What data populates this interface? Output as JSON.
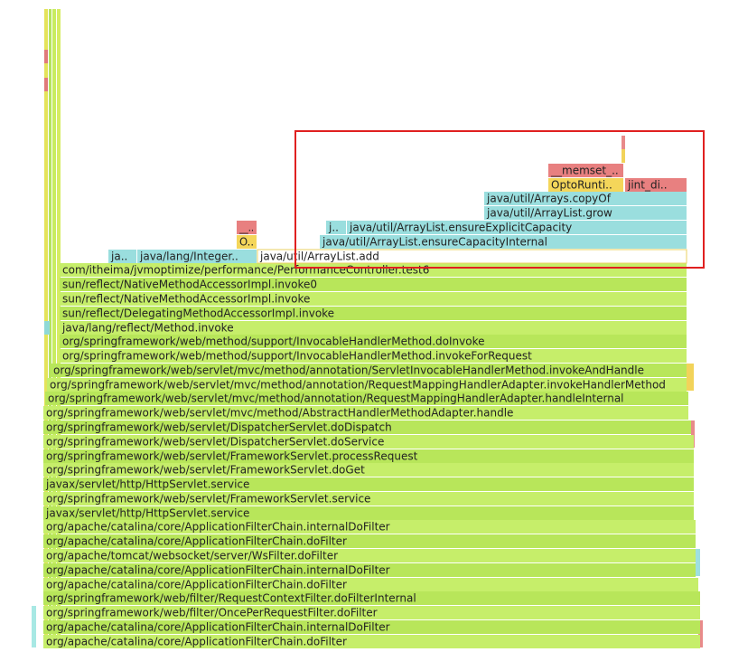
{
  "frames": [
    {
      "label": "org/apache/catalina/core/ApplicationFilterChain.doFilter"
    },
    {
      "label": "org/apache/catalina/core/ApplicationFilterChain.internalDoFilter"
    },
    {
      "label": "org/springframework/web/filter/OncePerRequestFilter.doFilter"
    },
    {
      "label": "org/springframework/web/filter/RequestContextFilter.doFilterInternal"
    },
    {
      "label": "org/apache/catalina/core/ApplicationFilterChain.doFilter"
    },
    {
      "label": "org/apache/catalina/core/ApplicationFilterChain.internalDoFilter"
    },
    {
      "label": "org/apache/tomcat/websocket/server/WsFilter.doFilter"
    },
    {
      "label": "org/apache/catalina/core/ApplicationFilterChain.doFilter"
    },
    {
      "label": "org/apache/catalina/core/ApplicationFilterChain.internalDoFilter"
    },
    {
      "label": "javax/servlet/http/HttpServlet.service"
    },
    {
      "label": "org/springframework/web/servlet/FrameworkServlet.service"
    },
    {
      "label": "javax/servlet/http/HttpServlet.service"
    },
    {
      "label": "org/springframework/web/servlet/FrameworkServlet.doGet"
    },
    {
      "label": "org/springframework/web/servlet/FrameworkServlet.processRequest"
    },
    {
      "label": "org/springframework/web/servlet/DispatcherServlet.doService"
    },
    {
      "label": "org/springframework/web/servlet/DispatcherServlet.doDispatch"
    },
    {
      "label": "org/springframework/web/servlet/mvc/method/AbstractHandlerMethodAdapter.handle"
    },
    {
      "label": "org/springframework/web/servlet/mvc/method/annotation/RequestMappingHandlerAdapter.handleInternal"
    },
    {
      "label": "org/springframework/web/servlet/mvc/method/annotation/RequestMappingHandlerAdapter.invokeHandlerMethod"
    },
    {
      "label": "org/springframework/web/servlet/mvc/method/annotation/ServletInvocableHandlerMethod.invokeAndHandle"
    },
    {
      "label": "org/springframework/web/method/support/InvocableHandlerMethod.invokeForRequest"
    },
    {
      "label": "org/springframework/web/method/support/InvocableHandlerMethod.doInvoke"
    },
    {
      "label": "java/lang/reflect/Method.invoke"
    },
    {
      "label": "sun/reflect/DelegatingMethodAccessorImpl.invoke"
    },
    {
      "label": "sun/reflect/NativeMethodAccessorImpl.invoke"
    },
    {
      "label": "sun/reflect/NativeMethodAccessorImpl.invoke0"
    },
    {
      "label": "com/itheima/jvmoptimize/performance/PerformanceController.test6"
    },
    {
      "label": "ja.."
    },
    {
      "label": "java/lang/Integer.."
    },
    {
      "label": "java/util/ArrayList.add"
    },
    {
      "label": "O.."
    },
    {
      "label": "java/util/ArrayList.ensureCapacityInternal"
    },
    {
      "label": "__.."
    },
    {
      "label": "j.."
    },
    {
      "label": "java/util/ArrayList.ensureExplicitCapacity"
    },
    {
      "label": "java/util/ArrayList.grow"
    },
    {
      "label": "java/util/Arrays.copyOf"
    },
    {
      "label": "OptoRunti.."
    },
    {
      "label": "jint_di.."
    },
    {
      "label": "__memset_.."
    }
  ]
}
